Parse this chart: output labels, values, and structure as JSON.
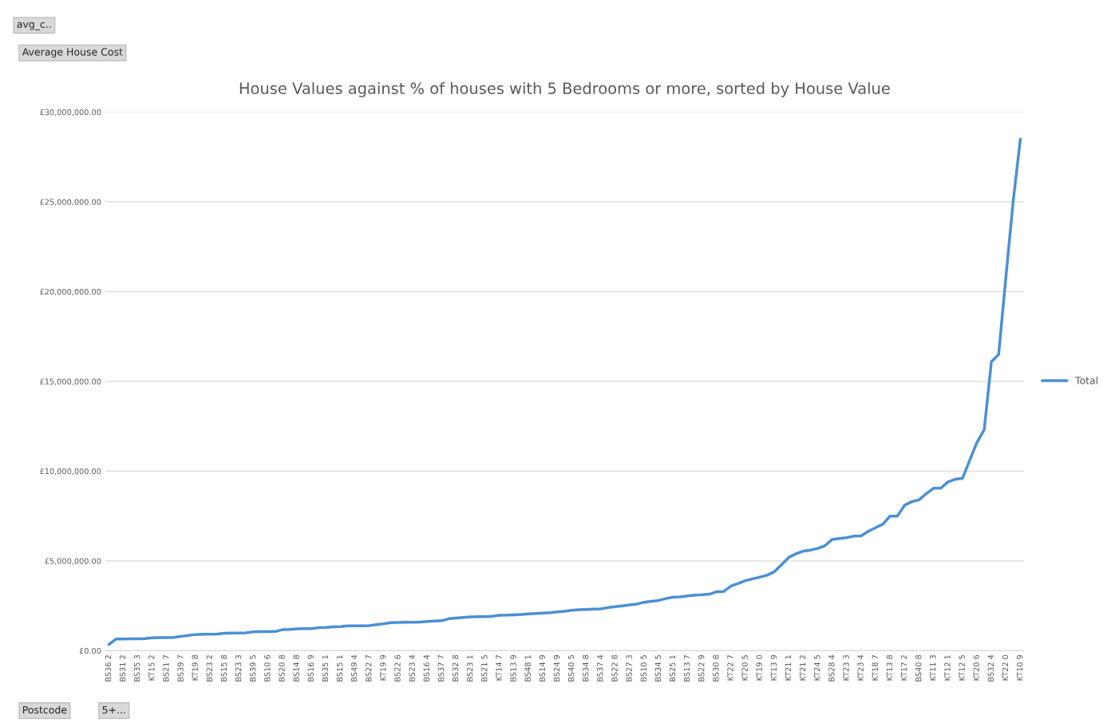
{
  "chart_data": {
    "type": "line",
    "title": "House Values against % of houses with 5 Bedrooms or more, sorted by House Value",
    "categories": [
      "BS36 2",
      null,
      "BS31 2",
      null,
      "BS35 3",
      null,
      "KT15 2",
      null,
      "BS21 7",
      null,
      "BS39 7",
      null,
      "KT19 8",
      null,
      "BS23 2",
      null,
      "BS15 8",
      null,
      "BS23 3",
      null,
      "BS39 5",
      null,
      "BS10 6",
      null,
      "BS20 8",
      null,
      "BS14 8",
      null,
      "BS16 9",
      null,
      "BS35 1",
      null,
      "BS15 1",
      null,
      "BS49 4",
      null,
      "BS22 7",
      null,
      "KT19 9",
      null,
      "BS22 6",
      null,
      "BS23 4",
      null,
      "BS16 4",
      null,
      "BS37 7",
      null,
      "BS32 8",
      null,
      "BS23 1",
      null,
      "BS21 5",
      null,
      "KT14 7",
      null,
      "BS13 9",
      null,
      "BS48 1",
      null,
      "BS14 9",
      null,
      "BS24 9",
      null,
      "BS40 5",
      null,
      "BS34 8",
      null,
      "BS37 4",
      null,
      "BS22 8",
      null,
      "BS27 3",
      null,
      "BS10 5",
      null,
      "BS34 5",
      null,
      "BS25 1",
      null,
      "BS13 7",
      null,
      "BS22 9",
      null,
      "BS30 8",
      null,
      "KT22 7",
      null,
      "KT20 5",
      null,
      "KT19 0",
      null,
      "KT13 9",
      null,
      "KT21 1",
      null,
      "KT21 2",
      null,
      "KT24 5",
      null,
      "BS28 4",
      null,
      "KT23 3",
      null,
      "KT23 4",
      null,
      "KT18 7",
      null,
      "KT13 8",
      null,
      "KT17 2",
      null,
      "BS40 8",
      null,
      "KT11 3",
      null,
      "KT12 1",
      null,
      "KT12 5",
      null,
      "KT20 6",
      null,
      "BS32 4",
      null,
      "KT22 0",
      null,
      "KT10 9"
    ],
    "series": [
      {
        "name": "Total",
        "color": "#4a8fd6",
        "values": [
          350000,
          650000,
          650000,
          660000,
          660000,
          670000,
          720000,
          730000,
          730000,
          740000,
          800000,
          850000,
          900000,
          920000,
          920000,
          930000,
          970000,
          980000,
          980000,
          1000000,
          1050000,
          1060000,
          1060000,
          1070000,
          1170000,
          1180000,
          1220000,
          1230000,
          1230000,
          1280000,
          1300000,
          1330000,
          1340000,
          1380000,
          1380000,
          1380000,
          1400000,
          1450000,
          1500000,
          1560000,
          1570000,
          1580000,
          1580000,
          1600000,
          1630000,
          1650000,
          1670000,
          1780000,
          1820000,
          1850000,
          1880000,
          1900000,
          1900000,
          1920000,
          1970000,
          1980000,
          2000000,
          2020000,
          2050000,
          2070000,
          2100000,
          2120000,
          2160000,
          2200000,
          2250000,
          2280000,
          2300000,
          2320000,
          2330000,
          2400000,
          2450000,
          2500000,
          2550000,
          2600000,
          2700000,
          2750000,
          2800000,
          2900000,
          2980000,
          3000000,
          3050000,
          3100000,
          3120000,
          3150000,
          3280000,
          3300000,
          3600000,
          3750000,
          3900000,
          4000000,
          4100000,
          4200000,
          4400000,
          4800000,
          5200000,
          5400000,
          5550000,
          5600000,
          5700000,
          5850000,
          6200000,
          6250000,
          6300000,
          6380000,
          6400000,
          6650000,
          6850000,
          7050000,
          7500000,
          7500000,
          8100000,
          8300000,
          8400000,
          8750000,
          9050000,
          9050000,
          9400000,
          9550000,
          9600000,
          10600000,
          11600000,
          12300000,
          16100000,
          16500000,
          20800000,
          25000000,
          28500000
        ]
      }
    ],
    "ylim": [
      0,
      30000000
    ],
    "yticks": [
      {
        "value": 0,
        "label": "£0.00"
      },
      {
        "value": 5000000,
        "label": "£5,000,000.00"
      },
      {
        "value": 10000000,
        "label": "£10,000,000.00"
      },
      {
        "value": 15000000,
        "label": "£15,000,000.00"
      },
      {
        "value": 20000000,
        "label": "£20,000,000.00"
      },
      {
        "value": 25000000,
        "label": "£25,000,000.00"
      },
      {
        "value": 30000000,
        "label": "£30,000,000.00"
      }
    ],
    "grid": "y",
    "legend": "right",
    "marker": "none",
    "line_style": "solid",
    "annotations": [
      "avg_c..",
      "Average House Cost",
      "Postcode",
      "5+..."
    ]
  }
}
